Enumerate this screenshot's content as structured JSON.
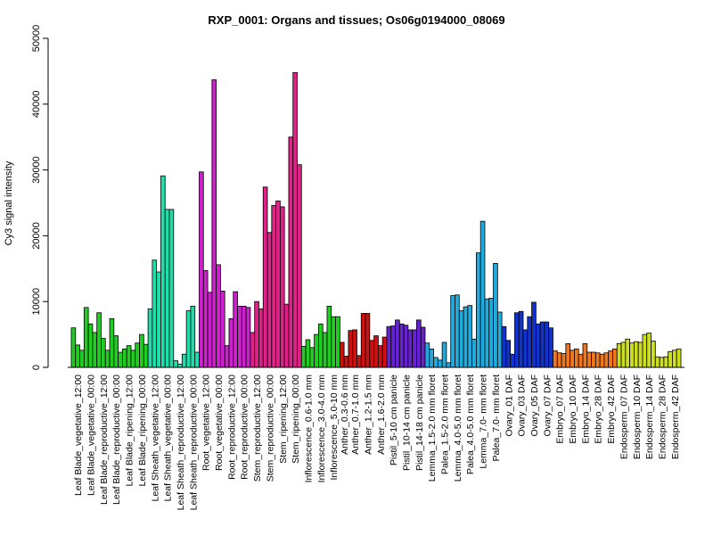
{
  "chart_data": {
    "type": "bar",
    "title": "RXP_0001: Organs and tissues; Os06g0194000_08069",
    "xlabel": "",
    "ylabel": "Cy3 signal intensity",
    "ylim": [
      0,
      50000
    ],
    "yticks": [
      "0",
      "10000",
      "20000",
      "30000",
      "40000",
      "50000"
    ],
    "grid": false,
    "legend": "none",
    "groups": [
      {
        "label": "Leaf Blade_vegetative_12:00",
        "color": "#22cc22",
        "values": [
          6000,
          3400,
          2600
        ]
      },
      {
        "label": "Leaf Blade_vegetative_00:00",
        "color": "#22cc22",
        "values": [
          9100,
          6600,
          5300
        ]
      },
      {
        "label": "Leaf Blade_reproductive_12:00",
        "color": "#22cc22",
        "values": [
          8300,
          4400,
          2600
        ]
      },
      {
        "label": "Leaf Blade_reproductive_00:00",
        "color": "#22cc22",
        "values": [
          7400,
          4800,
          2300
        ]
      },
      {
        "label": "Leaf Blade_ripening_12:00",
        "color": "#22cc22",
        "values": [
          2800,
          3300,
          2600
        ]
      },
      {
        "label": "Leaf Blade_ripening_00:00",
        "color": "#22cc22",
        "values": [
          3700,
          5000,
          3500
        ]
      },
      {
        "label": "Leaf Sheath_vegetative_12:00",
        "color": "#22ddaa",
        "values": [
          8900,
          16300,
          14500
        ]
      },
      {
        "label": "Leaf Sheath_vegetative_00:00",
        "color": "#22ddaa",
        "values": [
          29100,
          24000,
          24000
        ]
      },
      {
        "label": "Leaf Sheath_reproductive_12:00",
        "color": "#22ddaa",
        "values": [
          1000,
          500,
          2000
        ]
      },
      {
        "label": "Leaf Sheath_reproductive_00:00",
        "color": "#22ddaa",
        "values": [
          8600,
          9300,
          2300
        ]
      },
      {
        "label": "Root_vegetative_12:00",
        "color": "#cc22cc",
        "values": [
          29700,
          14700,
          11400
        ]
      },
      {
        "label": "Root_vegetative_00:00",
        "color": "#cc22cc",
        "values": [
          43700,
          15600,
          11600
        ]
      },
      {
        "label": "Root_reproductive_12:00",
        "color": "#cc22cc",
        "values": [
          3300,
          7400,
          11500
        ]
      },
      {
        "label": "Root_reproductive_00:00",
        "color": "#cc22cc",
        "values": [
          9300,
          9300,
          9100
        ]
      },
      {
        "label": "Stem_reproductive_12:00",
        "color": "#dd2288",
        "values": [
          5300,
          10000,
          8900
        ]
      },
      {
        "label": "Stem_reproductive_00:00",
        "color": "#dd2288",
        "values": [
          27400,
          20500,
          24600
        ]
      },
      {
        "label": "Stem_ripening_12:00",
        "color": "#dd2288",
        "values": [
          25300,
          24400,
          9600
        ]
      },
      {
        "label": "Stem_ripening_00:00",
        "color": "#dd2288",
        "values": [
          35000,
          44800,
          30800
        ]
      },
      {
        "label": "Inflorescence_0.6-1.0 mm",
        "color": "#22cc22",
        "values": [
          3200,
          4200,
          3000
        ]
      },
      {
        "label": "Inflorescence_3.0-4.0 mm",
        "color": "#22cc22",
        "values": [
          5000,
          6600,
          5300
        ]
      },
      {
        "label": "Inflorescence_5.0-10 mm",
        "color": "#22cc22",
        "values": [
          9300,
          7700,
          7700
        ]
      },
      {
        "label": "Anther_0.3-0.6 mm",
        "color": "#cc1111",
        "values": [
          3800,
          1700
        ]
      },
      {
        "label": "Anther_0.7-1.0 mm",
        "color": "#cc1111",
        "values": [
          5600,
          5700,
          1800
        ]
      },
      {
        "label": "Anther_1.2-1.5 mm",
        "color": "#cc1111",
        "values": [
          8200,
          8200,
          4100
        ]
      },
      {
        "label": "Anther_1.6-2.0 mm",
        "color": "#cc1111",
        "values": [
          4800,
          3300,
          4600
        ]
      },
      {
        "label": "Pistil_5-10 cm panicle",
        "color": "#6622cc",
        "values": [
          6200,
          6300,
          7200
        ]
      },
      {
        "label": "Pistil_10-14 cm panicle",
        "color": "#6622cc",
        "values": [
          6600,
          6400,
          5700
        ]
      },
      {
        "label": "Pistil_14-18 cm panicle",
        "color": "#6622cc",
        "values": [
          5700,
          7200,
          6100
        ]
      },
      {
        "label": "Lemma_1.5-2.0 mm floret",
        "color": "#22aadd",
        "values": [
          3700,
          2800,
          1500
        ]
      },
      {
        "label": "Palea_1.5-2.0 mm floret",
        "color": "#22aadd",
        "values": [
          1100,
          3800,
          700
        ]
      },
      {
        "label": "Lemma_4.0-5.0 mm floret",
        "color": "#22aadd",
        "values": [
          10900,
          11000,
          8600
        ]
      },
      {
        "label": "Palea_4.0-5.0 mm floret",
        "color": "#22aadd",
        "values": [
          9200,
          9400,
          4300
        ]
      },
      {
        "label": "Lemma_7.0- mm floret",
        "color": "#22aadd",
        "values": [
          17400,
          22200,
          10400
        ]
      },
      {
        "label": "Palea_7.0- mm floret",
        "color": "#22aadd",
        "values": [
          10500,
          15800,
          8400
        ]
      },
      {
        "label": "Ovary_01 DAF",
        "color": "#1133cc",
        "values": [
          6200,
          4100,
          2000
        ]
      },
      {
        "label": "Ovary_03 DAF",
        "color": "#1133cc",
        "values": [
          8300,
          8500,
          5700
        ]
      },
      {
        "label": "Ovary_05 DAF",
        "color": "#1133cc",
        "values": [
          7700,
          9900,
          6600
        ]
      },
      {
        "label": "Ovary_07 DAF",
        "color": "#1133cc",
        "values": [
          6900,
          6900,
          6000
        ]
      },
      {
        "label": "Embryo_07 DAF",
        "color": "#ee7722",
        "values": [
          2500,
          2200,
          2100
        ]
      },
      {
        "label": "Embryo_10 DAF",
        "color": "#ee7722",
        "values": [
          3600,
          2600,
          2800
        ]
      },
      {
        "label": "Embryo_14 DAF",
        "color": "#ee7722",
        "values": [
          2000,
          3600,
          2300
        ]
      },
      {
        "label": "Embryo_28 DAF",
        "color": "#ee7722",
        "values": [
          2300,
          2200,
          2000
        ]
      },
      {
        "label": "Embryo_42 DAF",
        "color": "#ee7722",
        "values": [
          2200,
          2500,
          2800
        ]
      },
      {
        "label": "Endosperm_07 DAF",
        "color": "#ccdd22",
        "values": [
          3600,
          3800,
          4300
        ]
      },
      {
        "label": "Endosperm_10 DAF",
        "color": "#ccdd22",
        "values": [
          3700,
          3900,
          3800
        ]
      },
      {
        "label": "Endosperm_14 DAF",
        "color": "#ccdd22",
        "values": [
          5000,
          5200,
          4000
        ]
      },
      {
        "label": "Endosperm_28 DAF",
        "color": "#ccdd22",
        "values": [
          1600,
          1500,
          1600
        ]
      },
      {
        "label": "Endosperm_42 DAF",
        "color": "#ccdd22",
        "values": [
          2400,
          2600,
          2800
        ]
      }
    ]
  }
}
